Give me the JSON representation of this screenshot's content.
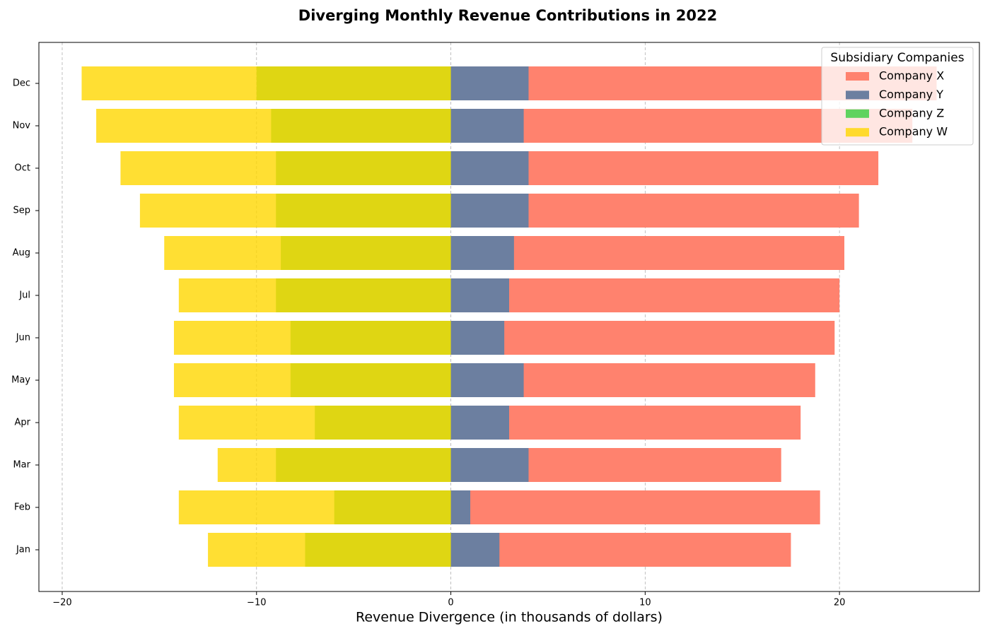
{
  "chart_data": {
    "type": "diverging-barh",
    "title": "Diverging Monthly Revenue Contributions in 2022",
    "xlabel": "Revenue Divergence (in thousands of dollars)",
    "categories": [
      "Jan",
      "Feb",
      "Mar",
      "Apr",
      "May",
      "Jun",
      "Jul",
      "Aug",
      "Sep",
      "Oct",
      "Nov",
      "Dec"
    ],
    "series": [
      {
        "name": "Company X",
        "color": "#ff826e",
        "values": [
          17.5,
          19,
          17,
          18,
          18.75,
          19.75,
          20,
          20.25,
          21,
          22,
          23.75,
          25
        ]
      },
      {
        "name": "Company Y",
        "color": "#6c7fa0",
        "values": [
          2.5,
          1,
          4,
          3,
          3.75,
          2.75,
          3,
          3.25,
          4,
          4,
          3.75,
          4
        ]
      },
      {
        "name": "Company Z",
        "color": "#5fd35f",
        "values": [
          -7.5,
          -6,
          -9,
          -7,
          -8.25,
          -8.25,
          -9,
          -8.75,
          -9,
          -9,
          -9.25,
          -10
        ]
      },
      {
        "name": "Company W",
        "color": "#ffd700",
        "alpha": 0.8,
        "values": [
          -12.5,
          -14,
          -12,
          -14,
          -14.25,
          -14.25,
          -14,
          -14.75,
          -16,
          -17,
          -18.25,
          -19
        ]
      }
    ],
    "xlim": [
      -21.2,
      27.2
    ],
    "xticks": [
      {
        "value": -20,
        "label": "−20"
      },
      {
        "value": -10,
        "label": "−10"
      },
      0,
      10,
      20
    ],
    "grid": true,
    "legend_title": "Subsidiary Companies",
    "legend_position": "upper-right"
  }
}
